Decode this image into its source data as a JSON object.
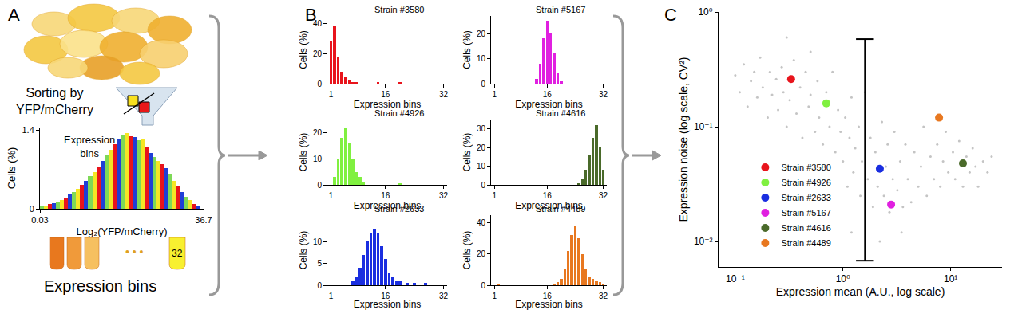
{
  "panel_labels": [
    "A",
    "B",
    "C"
  ],
  "chart_data": [
    {
      "type": "bar",
      "x_label": "Log₂(YFP/mCherry)",
      "y_label": "Cells (%)",
      "annotations": {
        "sorting": [
          "Sorting by",
          "YFP/mCherry"
        ],
        "hist_label": [
          "Expression",
          "bins"
        ],
        "tube_label": "32",
        "dots": "• • •",
        "bottom_label": "Expression bins"
      },
      "x": [
        0.5,
        1.4,
        2.3,
        3.2,
        4.1,
        5.0,
        5.9,
        6.8,
        7.7,
        8.6,
        9.5,
        10.4,
        11.3,
        12.2,
        13.1,
        14.0,
        14.9,
        15.8,
        16.7,
        17.6,
        18.5,
        19.4,
        20.3,
        21.2,
        22.1,
        23.0,
        23.9,
        24.8,
        25.7,
        26.6,
        27.5,
        28.4,
        29.3,
        30.2,
        31.1,
        32.0,
        32.9,
        33.8,
        34.7,
        35.6
      ],
      "values": [
        0.04,
        0.06,
        0.08,
        0.1,
        0.13,
        0.16,
        0.2,
        0.25,
        0.3,
        0.36,
        0.42,
        0.5,
        0.58,
        0.66,
        0.75,
        0.85,
        0.95,
        1.05,
        1.15,
        1.25,
        1.32,
        1.35,
        1.3,
        1.28,
        1.22,
        1.25,
        1.1,
        1.0,
        0.92,
        0.85,
        0.8,
        0.72,
        0.62,
        0.5,
        0.4,
        0.3,
        0.22,
        0.15,
        0.09,
        0.05
      ],
      "colors": [
        "#7ed957",
        "#f5e625",
        "#e8141c",
        "#1f3fd6",
        "#7ed957",
        "#f5e625",
        "#e8141c",
        "#1f3fd6",
        "#7ed957",
        "#f5e625",
        "#e8141c",
        "#1f3fd6",
        "#7ed957",
        "#f5e625",
        "#e8141c",
        "#1f3fd6",
        "#7ed957",
        "#f5e625",
        "#e8141c",
        "#1f3fd6",
        "#7ed957",
        "#f5e625",
        "#e8141c",
        "#1f3fd6",
        "#7ed957",
        "#f5e625",
        "#e8141c",
        "#1f3fd6",
        "#7ed957",
        "#f5e625",
        "#e8141c",
        "#1f3fd6",
        "#7ed957",
        "#f5e625",
        "#e8141c",
        "#1f3fd6",
        "#7ed957",
        "#f5e625",
        "#e8141c",
        "#1f3fd6"
      ],
      "xlim": [
        0.03,
        36.7
      ],
      "xticks": [
        0.03,
        36.7
      ],
      "ylim": [
        0,
        1.45
      ],
      "yticks": [
        0,
        1.4
      ],
      "grid": false
    },
    {
      "type": "bar",
      "title": "Strain #3580",
      "x_label": "Expression bins",
      "y_label": "Cells (%)",
      "color": "#e8141c",
      "x": [
        1,
        2,
        3,
        4,
        5,
        6,
        7,
        8,
        9,
        10,
        11,
        12,
        13,
        14,
        15,
        16,
        17,
        18,
        19,
        20,
        21,
        22,
        23,
        24,
        25,
        26,
        27,
        28,
        29,
        30,
        31,
        32
      ],
      "values": [
        28,
        38,
        18,
        8,
        4,
        2,
        1,
        1,
        0,
        0,
        0,
        0,
        0,
        1,
        0,
        0,
        0,
        0,
        0,
        1,
        0,
        0,
        0,
        0,
        0,
        0,
        0,
        0,
        0,
        0,
        0,
        0
      ],
      "xlim": [
        0,
        33
      ],
      "xticks": [
        1,
        16,
        32
      ],
      "ylim": [
        0,
        45
      ],
      "yticks": [
        0,
        20,
        40
      ],
      "grid": false
    },
    {
      "type": "bar",
      "title": "Strain #5167",
      "x_label": "Expression bins",
      "y_label": "Cells (%)",
      "color": "#e020e0",
      "x": [
        1,
        2,
        3,
        4,
        5,
        6,
        7,
        8,
        9,
        10,
        11,
        12,
        13,
        14,
        15,
        16,
        17,
        18,
        19,
        20,
        21,
        22,
        23,
        24,
        25,
        26,
        27,
        28,
        29,
        30,
        31,
        32
      ],
      "values": [
        0,
        0,
        0,
        0,
        0,
        0,
        0,
        0,
        0,
        0,
        0,
        0,
        2,
        8,
        18,
        25,
        20,
        12,
        4,
        1,
        0,
        0,
        0,
        0,
        0,
        0,
        0,
        0,
        0,
        0,
        0,
        0
      ],
      "xlim": [
        0,
        33
      ],
      "xticks": [
        1,
        16,
        32
      ],
      "ylim": [
        0,
        27
      ],
      "yticks": [
        0,
        10,
        20
      ],
      "grid": false
    },
    {
      "type": "bar",
      "title": "Strain #4926",
      "x_label": "Expression bins",
      "y_label": "Cells (%)",
      "color": "#80f040",
      "x": [
        1,
        2,
        3,
        4,
        5,
        6,
        7,
        8,
        9,
        10,
        11,
        12,
        13,
        14,
        15,
        16,
        17,
        18,
        19,
        20,
        21,
        22,
        23,
        24,
        25,
        26,
        27,
        28,
        29,
        30,
        31,
        32
      ],
      "values": [
        0,
        3,
        10,
        18,
        22,
        16,
        10,
        5,
        3,
        1,
        0,
        0,
        0,
        0,
        0,
        0,
        0,
        0,
        0,
        0.5,
        0,
        0,
        0,
        0,
        0,
        0,
        0,
        0,
        0,
        0,
        0,
        0
      ],
      "xlim": [
        0,
        33
      ],
      "xticks": [
        1,
        16,
        32
      ],
      "ylim": [
        0,
        25
      ],
      "yticks": [
        0,
        10,
        20
      ],
      "grid": false
    },
    {
      "type": "bar",
      "title": "Strain #4616",
      "x_label": "Expression bins",
      "y_label": "Cells (%)",
      "color": "#4a6a2a",
      "x": [
        1,
        2,
        3,
        4,
        5,
        6,
        7,
        8,
        9,
        10,
        11,
        12,
        13,
        14,
        15,
        16,
        17,
        18,
        19,
        20,
        21,
        22,
        23,
        24,
        25,
        26,
        27,
        28,
        29,
        30,
        31,
        32
      ],
      "values": [
        0,
        0,
        0,
        0,
        0,
        0,
        0,
        0,
        0,
        0,
        0,
        0,
        0,
        0,
        0,
        0,
        0,
        0,
        0,
        0,
        0,
        0,
        0,
        0,
        1,
        3,
        8,
        16,
        25,
        32,
        20,
        8
      ],
      "xlim": [
        0,
        33
      ],
      "xticks": [
        1,
        16,
        32
      ],
      "ylim": [
        0,
        35
      ],
      "yticks": [
        0,
        10,
        20,
        30
      ],
      "grid": false
    },
    {
      "type": "bar",
      "title": "Strain #2633",
      "x_label": "Expression bins",
      "y_label": "Cells (%)",
      "color": "#1a2ee0",
      "x": [
        1,
        2,
        3,
        4,
        5,
        6,
        7,
        8,
        9,
        10,
        11,
        12,
        13,
        14,
        15,
        16,
        17,
        18,
        19,
        20,
        21,
        22,
        23,
        24,
        25,
        26,
        27,
        28,
        29,
        30,
        31,
        32
      ],
      "values": [
        0,
        0,
        0,
        0,
        0,
        0,
        1,
        2,
        4,
        7,
        10,
        12,
        13,
        12,
        9,
        6,
        3,
        2,
        1,
        1,
        0,
        0.5,
        0,
        0.5,
        0,
        0,
        0.5,
        0,
        0,
        0,
        0,
        0
      ],
      "xlim": [
        0,
        33
      ],
      "xticks": [
        1,
        16,
        32
      ],
      "ylim": [
        0,
        16
      ],
      "yticks": [
        0,
        5,
        10
      ],
      "grid": false
    },
    {
      "type": "bar",
      "title": "Strain #4489",
      "x_label": "Expression bins",
      "y_label": "Cells (%)",
      "color": "#e87820",
      "x": [
        1,
        2,
        3,
        4,
        5,
        6,
        7,
        8,
        9,
        10,
        11,
        12,
        13,
        14,
        15,
        16,
        17,
        18,
        19,
        20,
        21,
        22,
        23,
        24,
        25,
        26,
        27,
        28,
        29,
        30,
        31,
        32
      ],
      "values": [
        0,
        1,
        0,
        0,
        0,
        0,
        0,
        0,
        0,
        0,
        0,
        0,
        0,
        0,
        0,
        0,
        0,
        1,
        2,
        4,
        10,
        22,
        32,
        38,
        30,
        20,
        10,
        5,
        4,
        3,
        2,
        1
      ],
      "xlim": [
        0,
        33
      ],
      "xticks": [
        1,
        16,
        32
      ],
      "ylim": [
        0,
        45
      ],
      "yticks": [
        0,
        20,
        40
      ],
      "grid": false
    },
    {
      "type": "scatter",
      "log": true,
      "grid": false,
      "legend": "lower left",
      "x_label": "Expression mean (A.U., log scale)",
      "y_label": "Expression noise (log scale, CV²)",
      "xlim": [
        0.07,
        30
      ],
      "ylim": [
        0.006,
        1
      ],
      "xticks": [
        {
          "value": 0.1,
          "label": "10⁻¹"
        },
        {
          "value": 1,
          "label": "10⁰"
        },
        {
          "value": 10,
          "label": "10¹"
        }
      ],
      "yticks": [
        {
          "value": 0.01,
          "label": "10⁻²"
        },
        {
          "value": 0.1,
          "label": "10⁻¹"
        },
        {
          "value": 1,
          "label": "10⁰"
        }
      ],
      "background_points": {
        "color": "#c4c4c4",
        "points": [
          [
            0.1,
            0.28
          ],
          [
            0.11,
            0.2
          ],
          [
            0.12,
            0.35
          ],
          [
            0.13,
            0.15
          ],
          [
            0.14,
            0.25
          ],
          [
            0.15,
            0.3
          ],
          [
            0.16,
            0.18
          ],
          [
            0.17,
            0.4
          ],
          [
            0.18,
            0.22
          ],
          [
            0.2,
            0.12
          ],
          [
            0.21,
            0.3
          ],
          [
            0.22,
            0.19
          ],
          [
            0.24,
            0.26
          ],
          [
            0.25,
            0.14
          ],
          [
            0.27,
            0.33
          ],
          [
            0.28,
            0.2
          ],
          [
            0.3,
            0.1
          ],
          [
            0.32,
            0.17
          ],
          [
            0.35,
            0.38
          ],
          [
            0.37,
            0.13
          ],
          [
            0.4,
            0.22
          ],
          [
            0.42,
            0.08
          ],
          [
            0.45,
            0.3
          ],
          [
            0.48,
            0.15
          ],
          [
            0.5,
            0.19
          ],
          [
            0.55,
            0.09
          ],
          [
            0.58,
            0.25
          ],
          [
            0.6,
            0.12
          ],
          [
            0.65,
            0.07
          ],
          [
            0.7,
            0.2
          ],
          [
            0.75,
            0.1
          ],
          [
            0.8,
            0.3
          ],
          [
            0.85,
            0.06
          ],
          [
            0.9,
            0.14
          ],
          [
            0.95,
            0.09
          ],
          [
            1.0,
            0.05
          ],
          [
            1.05,
            0.12
          ],
          [
            1.1,
            0.03
          ],
          [
            1.15,
            0.08
          ],
          [
            1.2,
            0.18
          ],
          [
            1.25,
            0.04
          ],
          [
            1.3,
            0.065
          ],
          [
            1.4,
            0.1
          ],
          [
            1.45,
            0.025
          ],
          [
            1.5,
            0.05
          ],
          [
            1.7,
            0.035
          ],
          [
            1.8,
            0.08
          ],
          [
            1.9,
            0.02
          ],
          [
            2.0,
            0.06
          ],
          [
            2.1,
            0.03
          ],
          [
            2.3,
            0.11
          ],
          [
            2.4,
            0.025
          ],
          [
            2.5,
            0.045
          ],
          [
            2.6,
            0.07
          ],
          [
            2.7,
            0.018
          ],
          [
            2.9,
            0.035
          ],
          [
            3.0,
            0.09
          ],
          [
            3.2,
            0.028
          ],
          [
            3.4,
            0.05
          ],
          [
            3.6,
            0.02
          ],
          [
            3.8,
            0.07
          ],
          [
            4.0,
            0.035
          ],
          [
            4.3,
            0.022
          ],
          [
            4.6,
            0.06
          ],
          [
            5.0,
            0.03
          ],
          [
            5.3,
            0.045
          ],
          [
            5.6,
            0.1
          ],
          [
            6.0,
            0.025
          ],
          [
            6.5,
            0.055
          ],
          [
            7.0,
            0.035
          ],
          [
            7.5,
            0.07
          ],
          [
            8.0,
            0.03
          ],
          [
            8.5,
            0.05
          ],
          [
            9.0,
            0.09
          ],
          [
            9.5,
            0.04
          ],
          [
            10.5,
            0.06
          ],
          [
            11,
            0.035
          ],
          [
            12,
            0.075
          ],
          [
            13,
            0.03
          ],
          [
            14,
            0.055
          ],
          [
            15,
            0.04
          ],
          [
            16,
            0.065
          ],
          [
            17,
            0.045
          ],
          [
            18,
            0.03
          ],
          [
            20,
            0.05
          ],
          [
            22,
            0.04
          ],
          [
            24,
            0.055
          ],
          [
            1.2,
            0.012
          ],
          [
            2.2,
            0.01
          ],
          [
            3.5,
            0.012
          ],
          [
            1.6,
            0.2
          ],
          [
            0.3,
            0.6
          ],
          [
            0.5,
            0.45
          ]
        ]
      },
      "range_bar": {
        "x": 1.6,
        "low": 0.0068,
        "high": 0.58
      },
      "series": [
        {
          "name": "Strain #3580",
          "color": "#e8141c",
          "x": [
            0.33
          ],
          "y": [
            0.26
          ]
        },
        {
          "name": "Strain #4926",
          "color": "#80f040",
          "x": [
            0.7
          ],
          "y": [
            0.16
          ]
        },
        {
          "name": "Strain #2633",
          "color": "#1a2ee0",
          "x": [
            2.2
          ],
          "y": [
            0.043
          ]
        },
        {
          "name": "Strain #5167",
          "color": "#e020e0",
          "x": [
            2.8
          ],
          "y": [
            0.021
          ]
        },
        {
          "name": "Strain #4616",
          "color": "#4a6a2a",
          "x": [
            13
          ],
          "y": [
            0.048
          ]
        },
        {
          "name": "Strain #4489",
          "color": "#e87820",
          "x": [
            7.8
          ],
          "y": [
            0.12
          ]
        }
      ]
    }
  ]
}
